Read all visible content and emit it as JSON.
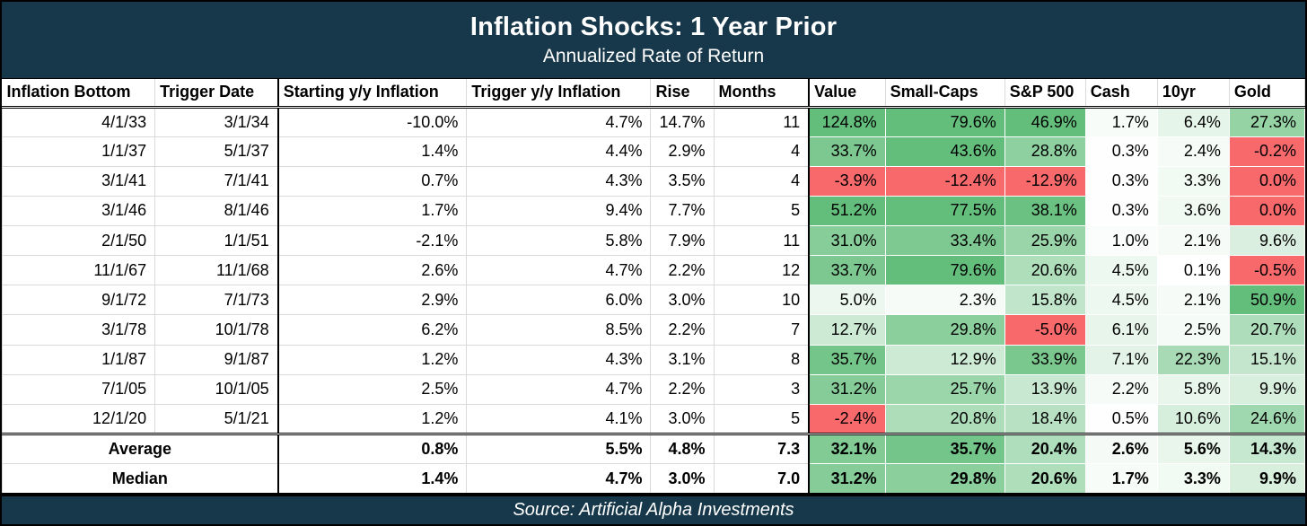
{
  "header": {
    "title": "Inflation Shocks: 1 Year Prior",
    "subtitle": "Annualized Rate of Return"
  },
  "footer": {
    "source": "Source: Artificial Alpha Investments"
  },
  "colors": {
    "header_navy": "#17384A",
    "positive_green_max": "#63BE7B",
    "negative_red": "#F8696B",
    "gridline_gray": "#D9D9D9",
    "border_black": "#000000"
  },
  "chart_data": {
    "type": "table",
    "title": "Inflation Shocks: 1 Year Prior",
    "subtitle": "Annualized Rate of Return",
    "source": "Source: Artificial Alpha Investments",
    "columns": [
      "Inflation Bottom",
      "Trigger Date",
      "Starting y/y Inflation",
      "Trigger y/y Inflation",
      "Rise",
      "Months",
      "Value",
      "Small-Caps",
      "S&P 500",
      "Cash",
      "10yr",
      "Gold"
    ],
    "color_scale_note": "asset cells: red fill if negative, white-to-green gradient for positives",
    "rows": [
      {
        "cells": [
          "4/1/33",
          "3/1/34",
          "-10.0%",
          "4.7%",
          "14.7%",
          "11"
        ],
        "assets": [
          {
            "v": "124.8%",
            "bg": "#63BE7B"
          },
          {
            "v": "79.6%",
            "bg": "#63BE7B"
          },
          {
            "v": "46.9%",
            "bg": "#63BE7B"
          },
          {
            "v": "1.7%",
            "bg": "#F8FCF9"
          },
          {
            "v": "6.4%",
            "bg": "#E6F5EA"
          },
          {
            "v": "27.3%",
            "bg": "#95D3A5"
          }
        ]
      },
      {
        "cells": [
          "1/1/37",
          "5/1/37",
          "1.4%",
          "4.4%",
          "2.9%",
          "4"
        ],
        "assets": [
          {
            "v": "33.7%",
            "bg": "#7CC890"
          },
          {
            "v": "43.6%",
            "bg": "#63BE7B"
          },
          {
            "v": "28.8%",
            "bg": "#8FD0A0"
          },
          {
            "v": "0.3%",
            "bg": "#FEFEFE"
          },
          {
            "v": "2.4%",
            "bg": "#F6FBF7"
          },
          {
            "v": "-0.2%",
            "bg": "#F8696B"
          }
        ]
      },
      {
        "cells": [
          "3/1/41",
          "7/1/41",
          "0.7%",
          "4.3%",
          "3.5%",
          "4"
        ],
        "assets": [
          {
            "v": "-3.9%",
            "bg": "#F8696B"
          },
          {
            "v": "-12.4%",
            "bg": "#F8696B"
          },
          {
            "v": "-12.9%",
            "bg": "#F8696B"
          },
          {
            "v": "0.3%",
            "bg": "#FEFEFE"
          },
          {
            "v": "3.3%",
            "bg": "#F2FAF4"
          },
          {
            "v": "0.0%",
            "bg": "#F8696B"
          }
        ]
      },
      {
        "cells": [
          "3/1/46",
          "8/1/46",
          "1.7%",
          "9.4%",
          "7.7%",
          "5"
        ],
        "assets": [
          {
            "v": "51.2%",
            "bg": "#63BE7B"
          },
          {
            "v": "77.5%",
            "bg": "#63BE7B"
          },
          {
            "v": "38.1%",
            "bg": "#6AC181"
          },
          {
            "v": "0.3%",
            "bg": "#FEFEFE"
          },
          {
            "v": "3.6%",
            "bg": "#F1F9F3"
          },
          {
            "v": "0.0%",
            "bg": "#F8696B"
          }
        ]
      },
      {
        "cells": [
          "2/1/50",
          "1/1/51",
          "-2.1%",
          "5.8%",
          "7.9%",
          "11"
        ],
        "assets": [
          {
            "v": "31.0%",
            "bg": "#86CD99"
          },
          {
            "v": "33.4%",
            "bg": "#7DC991"
          },
          {
            "v": "25.9%",
            "bg": "#9AD5AA"
          },
          {
            "v": "1.0%",
            "bg": "#FBFDFC"
          },
          {
            "v": "2.1%",
            "bg": "#F7FBF8"
          },
          {
            "v": "9.6%",
            "bg": "#DAEFDF"
          }
        ]
      },
      {
        "cells": [
          "11/1/67",
          "11/1/68",
          "2.6%",
          "4.7%",
          "2.2%",
          "12"
        ],
        "assets": [
          {
            "v": "33.7%",
            "bg": "#7CC890"
          },
          {
            "v": "79.6%",
            "bg": "#63BE7B"
          },
          {
            "v": "20.6%",
            "bg": "#AFDEBB"
          },
          {
            "v": "4.5%",
            "bg": "#EDF8F0"
          },
          {
            "v": "0.1%",
            "bg": "#FEFFFE"
          },
          {
            "v": "-0.5%",
            "bg": "#F8696B"
          }
        ]
      },
      {
        "cells": [
          "9/1/72",
          "7/1/73",
          "2.9%",
          "6.0%",
          "3.0%",
          "10"
        ],
        "assets": [
          {
            "v": "5.0%",
            "bg": "#ECF7EF"
          },
          {
            "v": "2.3%",
            "bg": "#F6FBF7"
          },
          {
            "v": "15.8%",
            "bg": "#C1E5CB"
          },
          {
            "v": "4.5%",
            "bg": "#EDF8F0"
          },
          {
            "v": "2.1%",
            "bg": "#F7FBF8"
          },
          {
            "v": "50.9%",
            "bg": "#63BE7B"
          }
        ]
      },
      {
        "cells": [
          "3/1/78",
          "10/1/78",
          "6.2%",
          "8.5%",
          "2.2%",
          "7"
        ],
        "assets": [
          {
            "v": "12.7%",
            "bg": "#CDEAD5"
          },
          {
            "v": "29.8%",
            "bg": "#8BCF9D"
          },
          {
            "v": "-5.0%",
            "bg": "#F8696B"
          },
          {
            "v": "6.1%",
            "bg": "#E7F5EB"
          },
          {
            "v": "2.5%",
            "bg": "#F5FBF7"
          },
          {
            "v": "20.7%",
            "bg": "#AEDDBB"
          }
        ]
      },
      {
        "cells": [
          "1/1/87",
          "9/1/87",
          "1.2%",
          "4.3%",
          "3.1%",
          "8"
        ],
        "assets": [
          {
            "v": "35.7%",
            "bg": "#74C589"
          },
          {
            "v": "12.9%",
            "bg": "#CDEAD4"
          },
          {
            "v": "33.9%",
            "bg": "#7BC88F"
          },
          {
            "v": "7.1%",
            "bg": "#E3F3E8"
          },
          {
            "v": "22.3%",
            "bg": "#A8DBB5"
          },
          {
            "v": "15.1%",
            "bg": "#C4E6CD"
          }
        ]
      },
      {
        "cells": [
          "7/1/05",
          "10/1/05",
          "2.5%",
          "4.7%",
          "2.2%",
          "3"
        ],
        "assets": [
          {
            "v": "31.2%",
            "bg": "#85CC98"
          },
          {
            "v": "25.7%",
            "bg": "#9BD5AA"
          },
          {
            "v": "13.9%",
            "bg": "#C9E8D1"
          },
          {
            "v": "2.2%",
            "bg": "#F7FBF8"
          },
          {
            "v": "5.8%",
            "bg": "#E8F6EC"
          },
          {
            "v": "9.9%",
            "bg": "#D8EFDE"
          }
        ]
      },
      {
        "cells": [
          "12/1/20",
          "5/1/21",
          "1.2%",
          "4.1%",
          "3.0%",
          "5"
        ],
        "assets": [
          {
            "v": "-2.4%",
            "bg": "#F8696B"
          },
          {
            "v": "20.8%",
            "bg": "#AEDDBA"
          },
          {
            "v": "18.4%",
            "bg": "#B7E1C2"
          },
          {
            "v": "0.5%",
            "bg": "#FDFEFD"
          },
          {
            "v": "10.6%",
            "bg": "#D6EEDC"
          },
          {
            "v": "24.6%",
            "bg": "#9FD7AE"
          }
        ]
      }
    ],
    "summary_rows": [
      {
        "label": "Average",
        "cells": [
          "0.8%",
          "5.5%",
          "4.8%",
          "7.3"
        ],
        "assets": [
          {
            "v": "32.1%",
            "bg": "#82CB95"
          },
          {
            "v": "35.7%",
            "bg": "#74C589"
          },
          {
            "v": "20.4%",
            "bg": "#AFDEBC"
          },
          {
            "v": "2.6%",
            "bg": "#F5FAF6"
          },
          {
            "v": "5.6%",
            "bg": "#E9F6EC"
          },
          {
            "v": "14.3%",
            "bg": "#C7E8D0"
          }
        ]
      },
      {
        "label": "Median",
        "cells": [
          "1.4%",
          "4.7%",
          "3.0%",
          "7.0"
        ],
        "assets": [
          {
            "v": "31.2%",
            "bg": "#85CC98"
          },
          {
            "v": "29.8%",
            "bg": "#8BCF9D"
          },
          {
            "v": "20.6%",
            "bg": "#AFDEBB"
          },
          {
            "v": "1.7%",
            "bg": "#F8FCF9"
          },
          {
            "v": "3.3%",
            "bg": "#F2FAF4"
          },
          {
            "v": "9.9%",
            "bg": "#D8EFDE"
          }
        ]
      }
    ]
  }
}
